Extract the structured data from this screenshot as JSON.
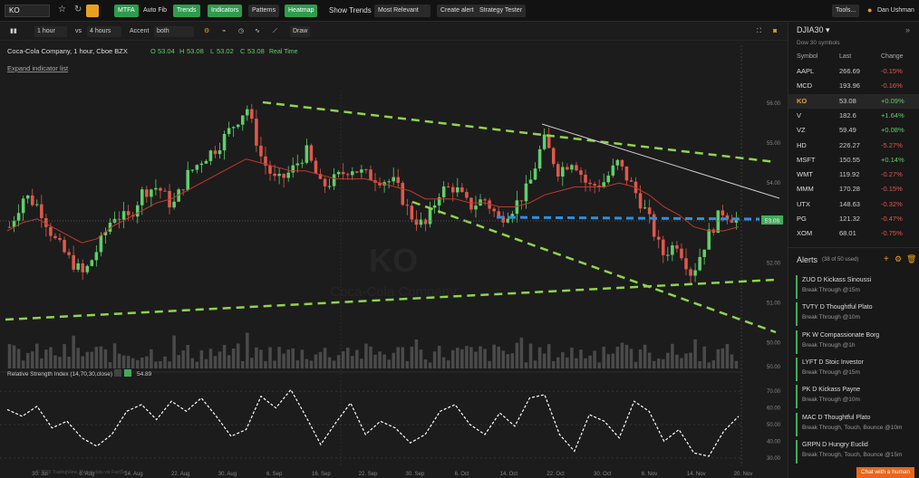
{
  "topbar": {
    "symbol": "KO",
    "mtfa": "MTFA",
    "auto_fib": "Auto Fib",
    "trends": "Trends",
    "indicators": "Indicators",
    "patterns": "Patterns",
    "heatmap": "Heatmap",
    "show_trends": "Show Trends",
    "most_relevant": "Most Relevant",
    "create_alert": "Create alert",
    "strategy_tester": "Strategy Tester",
    "tools": "Tools...",
    "user": "Dan Ushman"
  },
  "chart_toolbar": {
    "interval1": "1 hour",
    "vs": "vs",
    "interval2": "4 hours",
    "accent_label": "Accent",
    "accent_value": "both",
    "draw": "Draw"
  },
  "legend": {
    "title": "Coca-Cola Company, 1 hour, Cboe BZX",
    "o_label": "O",
    "o": "53.04",
    "h_label": "H",
    "h": "53.08",
    "l_label": "L",
    "l": "53.02",
    "c_label": "C",
    "c": "53.08",
    "realtime": "Real Time",
    "expand": "Expand indicator list"
  },
  "watermark": {
    "symbol": "KO",
    "name": "Coca-Cola Company"
  },
  "rsi": {
    "label": "Relative Strength Index (14,70,30,close)",
    "value": "54.89"
  },
  "copyright": "© 2019 TradingView. Market data via FactSet",
  "chart_data": [
    {
      "type": "candlestick",
      "title": "Coca-Cola Company, 1 hour, Cboe BZX",
      "ylim": [
        49.4,
        56.2
      ],
      "y_ticks": [
        "56.00",
        "55.00",
        "54.00",
        "53.00",
        "52.00",
        "51.00",
        "50.00"
      ],
      "last_price": "53.08",
      "x_ticks": [
        "30. Jul",
        "6. Aug",
        "14. Aug",
        "22. Aug",
        "30. Aug",
        "6. Sep",
        "16. Sep",
        "22. Sep",
        "30. Sep",
        "6. Oct",
        "14. Oct",
        "22. Oct",
        "30. Oct",
        "6. Nov",
        "14. Nov",
        "20. Nov"
      ],
      "close_trend": [
        52.9,
        53.7,
        53.4,
        52.6,
        52.1,
        51.7,
        52.4,
        53.2,
        53.1,
        53.8,
        53.9,
        53.4,
        54.2,
        54.6,
        54.9,
        55.4,
        55.9,
        54.6,
        54.0,
        54.3,
        54.8,
        53.9,
        54.1,
        54.4,
        54.2,
        54.1,
        54.0,
        53.2,
        52.9,
        53.8,
        53.9,
        53.4,
        53.6,
        53.1,
        53.4,
        53.9,
        55.1,
        54.3,
        54.6,
        53.9,
        54.0,
        54.5,
        53.9,
        53.2,
        52.2,
        52.5,
        51.7,
        52.6,
        53.3,
        53.08
      ],
      "ma": [
        52.8,
        53.0,
        53.1,
        52.9,
        52.7,
        52.5,
        52.6,
        52.9,
        53.1,
        53.3,
        53.5,
        53.6,
        53.8,
        54.0,
        54.2,
        54.4,
        54.6,
        54.5,
        54.4,
        54.3,
        54.3,
        54.2,
        54.1,
        54.1,
        54.1,
        54.0,
        53.9,
        53.8,
        53.6,
        53.6,
        53.6,
        53.5,
        53.5,
        53.4,
        53.4,
        53.5,
        53.7,
        53.8,
        53.9,
        53.9,
        53.9,
        54.0,
        53.9,
        53.7,
        53.4,
        53.2,
        52.9,
        52.8,
        52.8,
        52.9
      ]
    },
    {
      "type": "line",
      "title": "Relative Strength Index (14,70,30,close)",
      "ylim": [
        25,
        75
      ],
      "y_ticks": [
        "70.00",
        "60.00",
        "50.00",
        "40.00",
        "30.00"
      ],
      "values": [
        59,
        55,
        61,
        48,
        52,
        42,
        37,
        44,
        58,
        62,
        53,
        64,
        58,
        66,
        55,
        43,
        47,
        67,
        60,
        71,
        55,
        38,
        51,
        63,
        44,
        52,
        48,
        39,
        44,
        58,
        62,
        50,
        44,
        57,
        49,
        66,
        68,
        44,
        34,
        56,
        52,
        42,
        64,
        58,
        40,
        47,
        33,
        31,
        46,
        55
      ]
    }
  ],
  "sidebar": {
    "watchlist_title": "DJIA30",
    "watchlist_sub": "Dow 30 symbols",
    "col_symbol": "Symbol",
    "col_last": "Last",
    "col_change": "Change",
    "rows": [
      {
        "s": "AAPL",
        "l": "266.69",
        "c": "-0.15%"
      },
      {
        "s": "MCD",
        "l": "193.96",
        "c": "-0.16%"
      },
      {
        "s": "KO",
        "l": "53.08",
        "c": "+0.09%"
      },
      {
        "s": "V",
        "l": "182.6",
        "c": "+1.64%"
      },
      {
        "s": "VZ",
        "l": "59.49",
        "c": "+0.08%"
      },
      {
        "s": "HD",
        "l": "226.27",
        "c": "-5.27%"
      },
      {
        "s": "MSFT",
        "l": "150.55",
        "c": "+0.14%"
      },
      {
        "s": "WMT",
        "l": "119.92",
        "c": "-0.27%"
      },
      {
        "s": "MMM",
        "l": "170.28",
        "c": "-0.15%"
      },
      {
        "s": "UTX",
        "l": "148.63",
        "c": "-0.32%"
      },
      {
        "s": "PG",
        "l": "121.32",
        "c": "-0.47%"
      },
      {
        "s": "XOM",
        "l": "68.01",
        "c": "-0.75%"
      }
    ],
    "alerts_title": "Alerts",
    "alerts_count": "(38 of 50 used)",
    "alerts": [
      {
        "t1": "ZUO  D  Kickass Sinoussi",
        "t2": "Break Through @15m"
      },
      {
        "t1": "TVTY  D  Thoughtful Plato",
        "t2": "Break Through @10m"
      },
      {
        "t1": "PK  W  Compassionate Borg",
        "t2": "Break Through @1h"
      },
      {
        "t1": "LYFT  D  Stoic Investor",
        "t2": "Break Through @15m"
      },
      {
        "t1": "PK  D  Kickass Payne",
        "t2": "Break Through @10m"
      },
      {
        "t1": "MAC  D  Thoughtful Plato",
        "t2": "Break Through, Touch, Bounce @10m"
      },
      {
        "t1": "GRPN  D  Hungry Euclid",
        "t2": "Break Through, Touch, Bounce @15m"
      }
    ],
    "chat": "Chat with a human"
  }
}
